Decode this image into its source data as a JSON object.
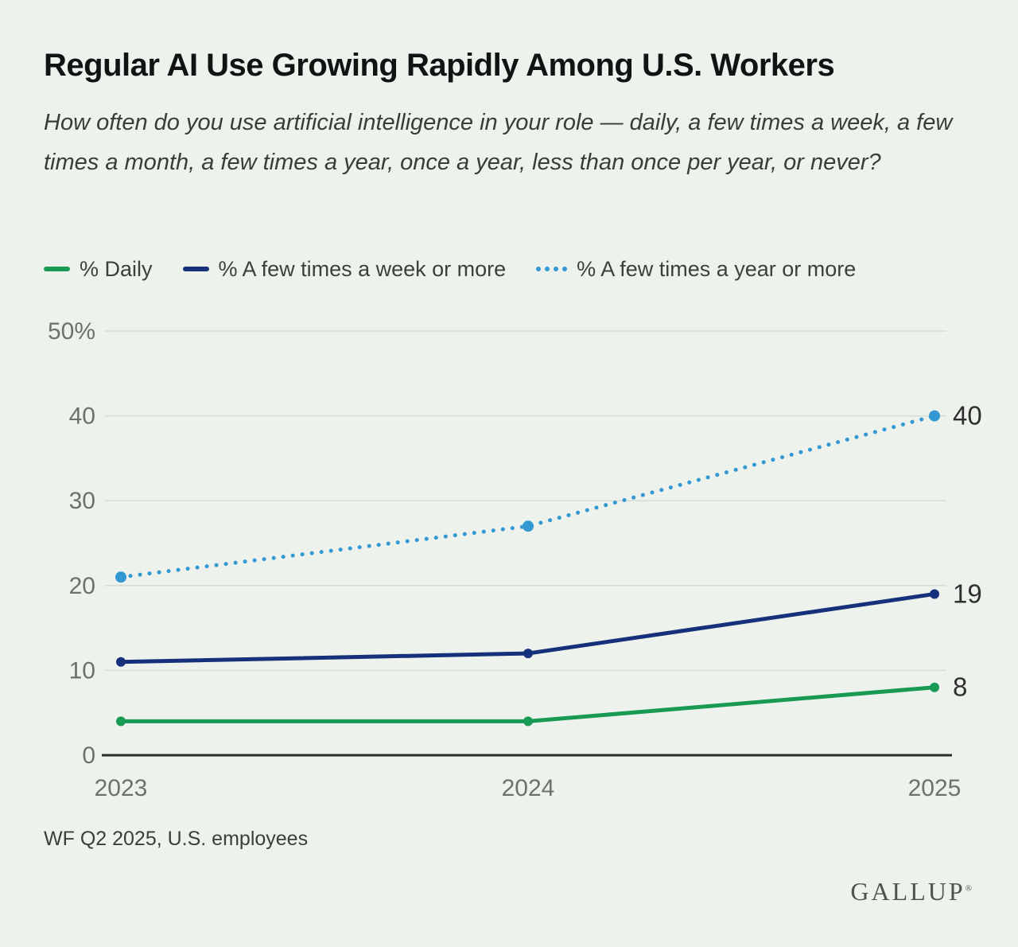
{
  "background": "#edf3ec",
  "header": {
    "title": "Regular AI Use Growing Rapidly Among U.S. Workers",
    "subtitle": "How often do you use artificial intelligence in your role — daily, a few times a week, a few times a month, a few times a year, once a year, less than once per year, or never?"
  },
  "chart_data": {
    "type": "line",
    "x": [
      "2023",
      "2024",
      "2025"
    ],
    "series": [
      {
        "name": "% Daily",
        "values": [
          4,
          4,
          8
        ],
        "color": "#189a55",
        "style": "solid",
        "end_label": "8"
      },
      {
        "name": "% A few times a week or more",
        "values": [
          11,
          12,
          19
        ],
        "color": "#16307c",
        "style": "solid",
        "end_label": "19"
      },
      {
        "name": "% A few times a year or more",
        "values": [
          21,
          27,
          40
        ],
        "color": "#3498d3",
        "style": "dotted",
        "end_label": "40"
      }
    ],
    "ylim": [
      0,
      50
    ],
    "yticks": [
      0,
      10,
      20,
      30,
      40,
      50
    ],
    "ytick_labels": [
      "0",
      "10",
      "20",
      "30",
      "40",
      "50%"
    ],
    "grid": true,
    "legend_position": "top",
    "colors": {
      "gridline": "#d7dcd5",
      "axis": "#2c2c2c",
      "tick_label": "#6d716c",
      "end_label": "#2f2f2f"
    }
  },
  "footnote": "WF Q2 2025, U.S. employees",
  "logo": {
    "text": "GALLUP",
    "mark": "®"
  }
}
